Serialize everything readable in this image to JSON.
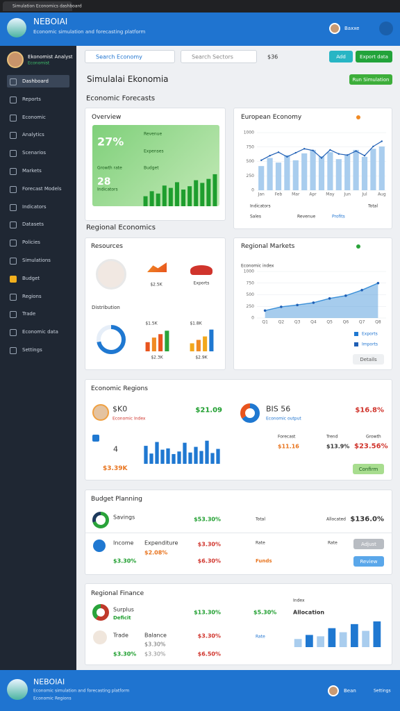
{
  "browser": {
    "tab": "Simulation Economics dashboard"
  },
  "header": {
    "title": "NEBOIAI",
    "subtitle": "Economic simulation and forecasting platform",
    "user": "Baxxe"
  },
  "sidebar": {
    "profile_name": "Ekonomist Analyst",
    "profile_role": "Economist",
    "items": [
      "Dashboard",
      "Reports",
      "Economic",
      "Analytics",
      "Scenarios",
      "Markets",
      "Forecast Models",
      "Indicators",
      "Datasets",
      "Policies",
      "Simulations",
      "Budget",
      "Regions",
      "Trade",
      "Economic data",
      "Settings"
    ]
  },
  "toolbar": {
    "search_economy": "Search Economy",
    "search_sectors": "Search Sectors",
    "currency": "$36",
    "add": "Add",
    "export": "Export data"
  },
  "page": {
    "title": "Simulalai Ekonomia",
    "run": "Run Simulation",
    "section1": "Economic Forecasts",
    "section2": "Regional Economics"
  },
  "overview": {
    "title": "Overview",
    "stat1": "27%",
    "stat1_label": "Growth rate",
    "stat2": "28",
    "stat2_label": "Indicators",
    "label1": "Revenue",
    "label2": "Expenses",
    "label3": "Budget",
    "chart": {
      "type": "bar",
      "values": [
        30,
        45,
        38,
        62,
        55,
        72,
        50,
        60,
        78,
        70,
        82,
        96
      ],
      "ylim": [
        0,
        100
      ],
      "color": "#1e9e2e"
    }
  },
  "europe": {
    "title": "European Economy",
    "legend1": "Indicators",
    "legend2": "Sales",
    "legend3": "Revenue",
    "legend4": "Profits",
    "legend5": "Total",
    "chart": {
      "type": "bar",
      "categories": [
        "Jan",
        null,
        "Feb",
        null,
        "Mar",
        null,
        "Apr",
        null,
        "May",
        null,
        "Jun",
        null,
        "Jul",
        null,
        "Aug"
      ],
      "values": [
        420,
        560,
        480,
        610,
        520,
        640,
        700,
        590,
        660,
        540,
        620,
        700,
        580,
        720,
        760
      ],
      "ylim": [
        0,
        1000
      ],
      "yticks": [
        0,
        250,
        500,
        750,
        1000
      ],
      "color": "#a9cdee",
      "line": {
        "values": [
          520,
          600,
          660,
          580,
          650,
          720,
          690,
          560,
          700,
          630,
          610,
          680,
          600,
          760,
          850
        ],
        "color": "#1f5fb5"
      }
    }
  },
  "resources": {
    "title": "Resources",
    "icon2_label": "$2.5K",
    "icon3_label": "Exports",
    "distribution": "Distribution",
    "bars1_top": "$1.5K",
    "bars1_bottom": "$2.3K",
    "bars2_top": "$1.8K",
    "bars2_bottom": "$2.9K",
    "donut": {
      "values": [
        72,
        28
      ],
      "colors": [
        "#1f78d1",
        "#e6eef8"
      ]
    },
    "bars1": {
      "type": "bar",
      "values": [
        40,
        60,
        75,
        90
      ],
      "ylim": [
        0,
        100
      ],
      "colors": [
        "#e8541e",
        "#f08a24",
        "#e8541e",
        "#2aa33a"
      ]
    },
    "bars2": {
      "type": "bar",
      "values": [
        35,
        50,
        65,
        95
      ],
      "ylim": [
        0,
        100
      ],
      "colors": [
        "#f2a81d",
        "#f08a24",
        "#f2a81d",
        "#1f78d1"
      ]
    }
  },
  "markets": {
    "title": "Regional Markets",
    "axis_title": "Economic index",
    "legend1": "Exports",
    "legend2": "Imports",
    "details": "Details",
    "chart": {
      "type": "area",
      "categories": [
        "Q1",
        "Q2",
        "Q3",
        "Q4",
        "Q5",
        "Q6",
        "Q7",
        "Q8"
      ],
      "values": [
        160,
        240,
        280,
        330,
        420,
        480,
        600,
        750
      ],
      "ylim": [
        0,
        1000
      ],
      "yticks": [
        0,
        250,
        500,
        750,
        1000
      ],
      "color": "#3a8fd8"
    }
  },
  "regions": {
    "title": "Economic Regions",
    "r1_value": "$K0",
    "r1_label": "Economic Index",
    "r1_change": "$21.09",
    "r2_value": "BIS 56",
    "r2_label": "Economic output",
    "r2_change": "$16.8%",
    "count": "4",
    "total": "$3.39K",
    "col1": "Forecast",
    "col2": "Trend",
    "col3": "Growth",
    "val1": "$11.16",
    "val2": "$13.9%",
    "val3": "$23.56%",
    "confirm": "Confirm",
    "pie": {
      "values": [
        65,
        35
      ],
      "colors": [
        "#1f78d1",
        "#e8541e"
      ]
    },
    "chart": {
      "type": "bar",
      "values": [
        70,
        40,
        85,
        55,
        60,
        38,
        48,
        82,
        44,
        66,
        50,
        90,
        42,
        58
      ],
      "ylim": [
        0,
        100
      ],
      "color": "#1f78d1"
    }
  },
  "budget": {
    "title": "Budget Planning",
    "r1_label": "Savings",
    "r1_value": "$53.30%",
    "r1_col": "Total",
    "r1_col2": "Allocated",
    "r1_total": "$136.0%",
    "r2_label": "Income",
    "r2_sub": "Expenditure",
    "r2_value": "$3.30%",
    "r2_sub_value": "$2.08%",
    "r2_green": "$3.30%",
    "r2_red": "$6.30%",
    "r2_col": "Rate",
    "r2_col2": "Rate",
    "r2_funds": "Funds",
    "adjust": "Adjust",
    "review": "Review",
    "pie": {
      "values": [
        70,
        30
      ],
      "colors": [
        "#2aa33a",
        "#1d3a5c"
      ]
    }
  },
  "finance": {
    "title": "Regional Finance",
    "r1_label": "Surplus",
    "r1_sub": "Deficit",
    "r1_value": "$13.30%",
    "r1_value2": "$5.30%",
    "chart_title": "Index",
    "chart_label": "Allocation",
    "r2_label": "Trade",
    "r2_sub": "Balance",
    "r2_value": "$3.30%",
    "r2_green": "$3.30%",
    "r2_mid": "$3.30%",
    "r2_mid2": "$3.30%",
    "r2_red": "$6.50%",
    "r2_col": "Rate",
    "pie": {
      "values": [
        60,
        40
      ],
      "colors": [
        "#c0392b",
        "#2aa33a"
      ]
    },
    "chart": {
      "type": "bar",
      "values": [
        30,
        45,
        40,
        70,
        55,
        85,
        60,
        95
      ],
      "ylim": [
        0,
        100
      ],
      "colors": [
        "#a9cdee",
        "#1f78d1",
        "#a9cdee",
        "#1f78d1",
        "#a9cdee",
        "#1f78d1",
        "#a9cdee",
        "#1f78d1"
      ]
    }
  },
  "footer": {
    "title": "NEBOIAI",
    "line1": "Economic simulation and forecasting platform",
    "line2": "Economic Regions",
    "user": "Bean",
    "settings": "Settings"
  }
}
